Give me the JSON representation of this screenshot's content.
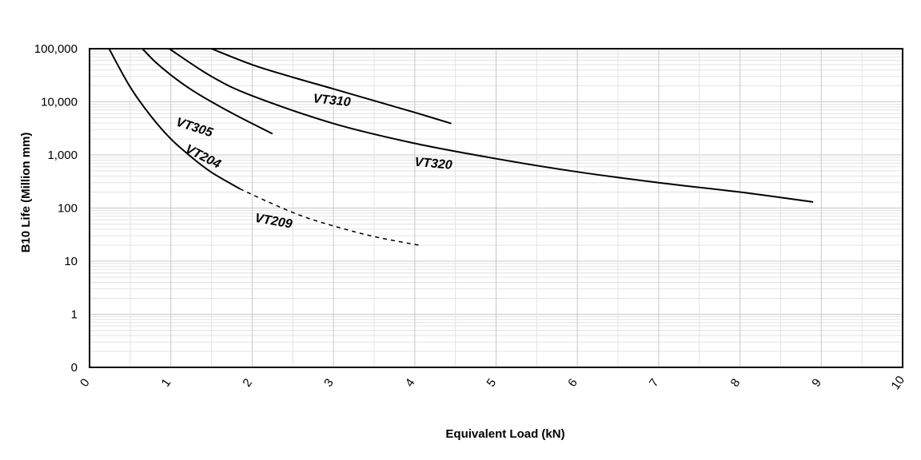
{
  "chart_data": {
    "type": "line",
    "xlabel": "Equivalent Load (kN)",
    "ylabel": "B10 Life (Million mm)",
    "xlim": [
      0,
      10
    ],
    "ylim_labels": [
      "0",
      "1",
      "10",
      "100",
      "1,000",
      "10,000",
      "100,000"
    ],
    "y_scale": "log",
    "grid": true,
    "x_ticks": [
      "0",
      "1",
      "2",
      "3",
      "4",
      "5",
      "6",
      "7",
      "8",
      "9",
      "10"
    ],
    "series": [
      {
        "name": "VT204",
        "style": "solid",
        "x": [
          0.24,
          0.5,
          0.75,
          1.0,
          1.25,
          1.5,
          1.85
        ],
        "y": [
          100000,
          19000,
          5500,
          2000,
          920,
          470,
          230
        ]
      },
      {
        "name": "VT209",
        "style": "dashed",
        "x": [
          1.85,
          2.2,
          2.6,
          3.0,
          3.5,
          4.05
        ],
        "y": [
          230,
          130,
          72,
          46,
          29,
          20
        ]
      },
      {
        "name": "VT305",
        "style": "solid",
        "x": [
          0.65,
          0.8,
          1.0,
          1.25,
          1.5,
          1.8,
          2.25
        ],
        "y": [
          100000,
          58000,
          32000,
          17000,
          10000,
          5600,
          2500
        ]
      },
      {
        "name": "VT320",
        "style": "solid",
        "x": [
          0.98,
          1.5,
          2.0,
          3.0,
          4.0,
          5.0,
          6.0,
          7.0,
          8.0,
          8.9
        ],
        "y": [
          100000,
          30000,
          13000,
          3900,
          1650,
          850,
          480,
          300,
          200,
          130
        ]
      },
      {
        "name": "VT310",
        "style": "solid",
        "x": [
          1.5,
          2.0,
          2.5,
          3.0,
          3.5,
          4.0,
          4.45
        ],
        "y": [
          100000,
          50000,
          29000,
          17500,
          10500,
          6300,
          3900
        ]
      }
    ]
  }
}
